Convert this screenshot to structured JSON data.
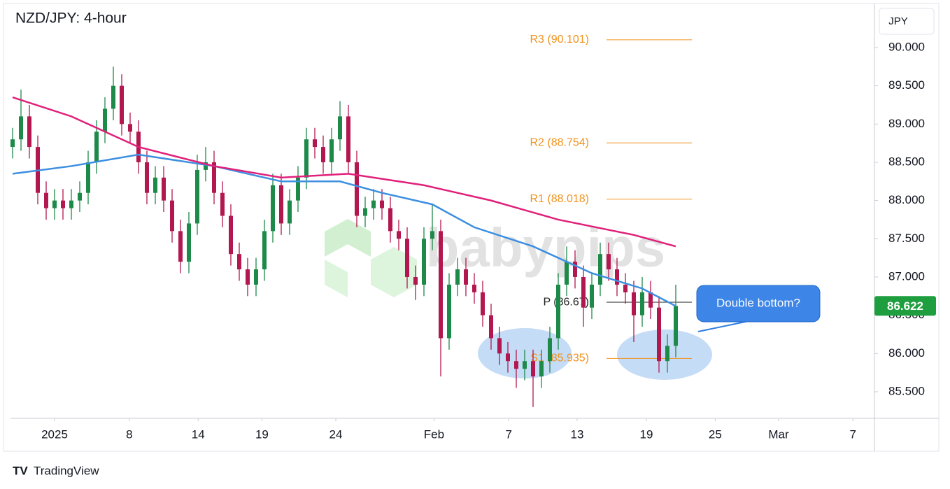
{
  "chart_data": {
    "type": "candlestick",
    "title": "NZD/JPY: 4-hour",
    "axis_label": "JPY",
    "watermark": "babypips",
    "brand": "TradingView",
    "annotation": "Double bottom?",
    "last_price": 86.622,
    "up_color": "#1e8a4a",
    "down_color": "#b3174f",
    "open": [
      88.7,
      88.8,
      89.1,
      88.7,
      88.1,
      87.9,
      88.0,
      87.9,
      88.0,
      88.1,
      88.5,
      88.9,
      89.2,
      89.5,
      89.0,
      88.9,
      88.5,
      88.1,
      88.3,
      88.0,
      87.6,
      87.2,
      87.7,
      88.4,
      88.5,
      88.1,
      87.8,
      87.3,
      87.1,
      86.9,
      87.1,
      87.6,
      88.2,
      87.7,
      88.0,
      88.3,
      88.8,
      88.7,
      88.5,
      88.8,
      89.1,
      88.5,
      87.8,
      87.9,
      88.0,
      87.9,
      87.6,
      87.5,
      87.0,
      86.9,
      87.5,
      87.6,
      86.2,
      86.9,
      87.1,
      86.9,
      86.8,
      86.5,
      86.2,
      86.0,
      85.9,
      85.8,
      85.9,
      85.7,
      85.9,
      86.2,
      86.9,
      87.2,
      87.0,
      86.6,
      86.9,
      87.3,
      87.1,
      86.9,
      86.8,
      86.5,
      86.8,
      86.6,
      85.9,
      86.1
    ],
    "high": [
      88.95,
      89.45,
      89.25,
      88.85,
      88.25,
      88.15,
      88.15,
      88.15,
      88.25,
      88.65,
      89.05,
      89.35,
      89.75,
      89.65,
      89.15,
      89.05,
      88.65,
      88.45,
      88.45,
      88.15,
      87.75,
      87.85,
      88.6,
      88.7,
      88.65,
      88.25,
      87.95,
      87.45,
      87.25,
      87.25,
      87.75,
      88.35,
      88.35,
      88.15,
      88.45,
      88.95,
      88.95,
      88.85,
      88.95,
      89.3,
      89.25,
      88.65,
      88.05,
      88.15,
      88.15,
      88.05,
      87.75,
      87.65,
      87.15,
      87.65,
      87.95,
      87.75,
      87.05,
      87.25,
      87.25,
      87.05,
      86.95,
      86.65,
      86.35,
      86.15,
      86.05,
      86.05,
      86.05,
      86.05,
      86.35,
      87.05,
      87.4,
      87.35,
      87.15,
      87.05,
      87.45,
      87.45,
      87.25,
      87.05,
      86.95,
      87.0,
      86.95,
      86.75,
      86.25,
      86.9
    ],
    "low": [
      88.55,
      88.65,
      88.55,
      87.95,
      87.75,
      87.75,
      87.75,
      87.75,
      87.85,
      87.95,
      88.35,
      88.75,
      89.05,
      88.85,
      88.75,
      88.35,
      87.95,
      87.95,
      87.85,
      87.45,
      87.05,
      87.05,
      87.55,
      88.25,
      87.95,
      87.65,
      87.15,
      86.95,
      86.75,
      86.75,
      86.95,
      87.45,
      87.55,
      87.55,
      87.85,
      88.15,
      88.55,
      88.35,
      88.35,
      88.65,
      88.35,
      87.65,
      87.65,
      87.75,
      87.75,
      87.45,
      87.35,
      86.85,
      86.7,
      86.75,
      87.35,
      85.7,
      86.05,
      86.75,
      86.75,
      86.65,
      86.35,
      86.05,
      85.85,
      85.75,
      85.55,
      85.65,
      85.3,
      85.55,
      85.75,
      86.05,
      86.75,
      86.85,
      86.35,
      86.45,
      86.75,
      86.95,
      86.75,
      86.65,
      86.15,
      86.35,
      86.45,
      85.75,
      85.75,
      85.95
    ],
    "close": [
      88.8,
      89.1,
      88.7,
      88.1,
      87.9,
      88.0,
      87.9,
      88.0,
      88.1,
      88.5,
      88.9,
      89.2,
      89.5,
      89.0,
      88.9,
      88.5,
      88.1,
      88.3,
      88.0,
      87.6,
      87.2,
      87.7,
      88.4,
      88.5,
      88.1,
      87.8,
      87.3,
      87.1,
      86.9,
      87.1,
      87.6,
      88.2,
      87.7,
      88.0,
      88.3,
      88.8,
      88.7,
      88.5,
      88.8,
      89.1,
      88.5,
      87.8,
      87.9,
      88.0,
      87.9,
      87.6,
      87.5,
      87.0,
      86.9,
      87.5,
      87.6,
      86.2,
      86.9,
      87.1,
      86.9,
      86.8,
      86.5,
      86.2,
      86.0,
      85.9,
      85.8,
      85.9,
      85.7,
      85.9,
      86.2,
      86.9,
      87.2,
      87.0,
      86.6,
      86.9,
      87.3,
      87.1,
      86.9,
      86.8,
      86.5,
      86.8,
      86.6,
      85.9,
      86.1,
      86.622
    ],
    "lines": [
      {
        "color": "#3d8fe0",
        "x": [
          0,
          7,
          15,
          24,
          32,
          39,
          44,
          50,
          55,
          62,
          69,
          75,
          79
        ],
        "values": [
          88.35,
          88.45,
          88.6,
          88.45,
          88.25,
          88.25,
          88.1,
          87.95,
          87.65,
          87.4,
          87.05,
          86.85,
          86.62
        ]
      },
      {
        "color": "#e0207a",
        "x": [
          0,
          7,
          15,
          24,
          32,
          40,
          49,
          57,
          65,
          74,
          79
        ],
        "values": [
          89.35,
          89.1,
          88.7,
          88.45,
          88.3,
          88.35,
          88.2,
          88.0,
          87.75,
          87.55,
          87.4
        ]
      }
    ],
    "pivots": [
      {
        "label": "R3 (90.101)",
        "value": 90.101,
        "color": "#f0921c"
      },
      {
        "label": "R2 (88.754)",
        "value": 88.754,
        "color": "#f0921c"
      },
      {
        "label": "R1 (88.018)",
        "value": 88.018,
        "color": "#f0921c"
      },
      {
        "label": "P (86.67)",
        "value": 86.67,
        "color": "#222222"
      },
      {
        "label": "S1 (85.935)",
        "value": 85.935,
        "color": "#f0921c"
      }
    ],
    "xlim": [
      -0.25,
      102.667
    ],
    "xticks": [
      {
        "value": 5,
        "label": "2025"
      },
      {
        "value": 13.9,
        "label": "8"
      },
      {
        "value": 22.1,
        "label": "14"
      },
      {
        "value": 29.7,
        "label": "19"
      },
      {
        "value": 38.5,
        "label": "24"
      },
      {
        "value": 50.2,
        "label": "Feb"
      },
      {
        "value": 59.1,
        "label": "7"
      },
      {
        "value": 67.25,
        "label": "13"
      },
      {
        "value": 75.5,
        "label": "19"
      },
      {
        "value": 83.7,
        "label": "25"
      },
      {
        "value": 91.25,
        "label": "Mar"
      },
      {
        "value": 100.1,
        "label": "7"
      }
    ],
    "ylim": [
      85.152,
      90.576
    ],
    "yticks": [
      {
        "value": 85.5,
        "label": "85.500"
      },
      {
        "value": 86,
        "label": "86.000"
      },
      {
        "value": 86.5,
        "label": "86.500"
      },
      {
        "value": 87,
        "label": "87.000"
      },
      {
        "value": 87.5,
        "label": "87.500"
      },
      {
        "value": 88,
        "label": "88.000"
      },
      {
        "value": 88.5,
        "label": "88.500"
      },
      {
        "value": 89,
        "label": "89.000"
      },
      {
        "value": 89.5,
        "label": "89.500"
      },
      {
        "value": 90,
        "label": "90.000"
      }
    ]
  }
}
